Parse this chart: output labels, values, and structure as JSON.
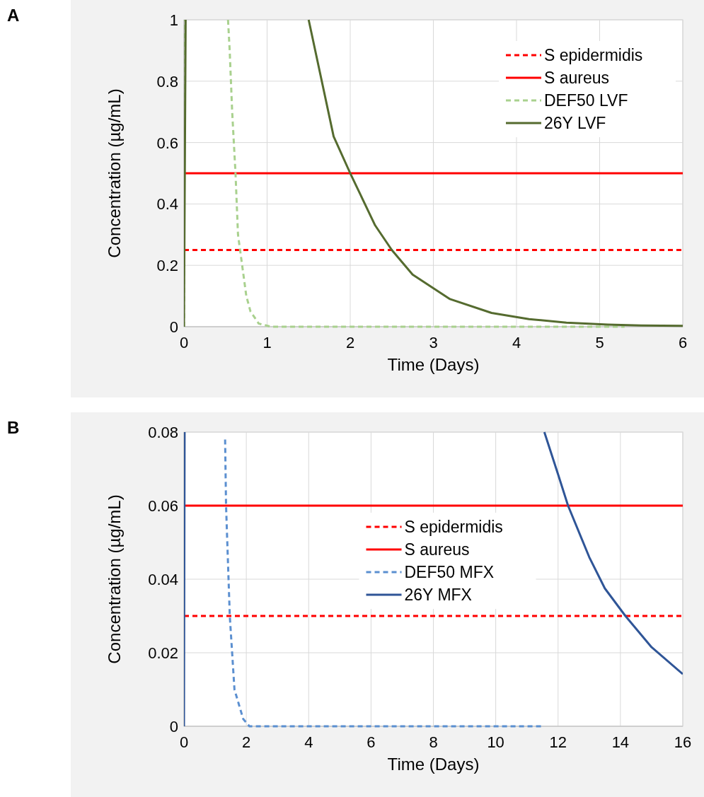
{
  "chart_data": [
    {
      "type": "line",
      "annotations": [
        "A"
      ],
      "xlabel": "Time (Days)",
      "ylabel": "Concentration  (µg/mL)",
      "xlim": [
        0,
        6
      ],
      "xticks": [
        0,
        1,
        2,
        3,
        4,
        5,
        6
      ],
      "ylim": [
        0,
        1
      ],
      "yticks": [
        0,
        0.2,
        0.4,
        0.6,
        0.8,
        1
      ],
      "grid": true,
      "legend": "top right",
      "series": [
        {
          "name": "S epidermidis",
          "color": "#ff0000",
          "line_style": "dashed",
          "x": [
            0,
            6
          ],
          "values": [
            0.25,
            0.25
          ]
        },
        {
          "name": "S aureus",
          "color": "#ff0000",
          "line_style": "solid",
          "x": [
            0,
            6
          ],
          "values": [
            0.5,
            0.5
          ]
        },
        {
          "name": "DEF50 LVF",
          "color": "#a9d18e",
          "line_style": "dashed",
          "x": [
            0,
            0.01,
            0.3,
            0.53,
            0.55,
            0.58,
            0.62,
            0.65,
            0.7,
            0.75,
            0.8,
            0.9,
            1.05,
            5.3
          ],
          "values": [
            0,
            1,
            null,
            1,
            0.9,
            0.7,
            0.5,
            0.3,
            0.2,
            0.1,
            0.05,
            0.01,
            0,
            0
          ]
        },
        {
          "name": "26Y LVF",
          "color": "#556b2f",
          "line_style": "solid",
          "x": [
            0,
            0.02,
            0.8,
            1.5,
            1.8,
            2,
            2.3,
            2.5,
            2.75,
            3.2,
            3.7,
            4.15,
            4.6,
            5.1,
            5.5,
            6
          ],
          "values": [
            0,
            1,
            null,
            1,
            0.62,
            0.5,
            0.33,
            0.25,
            0.17,
            0.09,
            0.045,
            0.025,
            0.013,
            0.007,
            0.004,
            0.003
          ]
        }
      ]
    },
    {
      "type": "line",
      "annotations": [
        "B"
      ],
      "xlabel": "Time (Days)",
      "ylabel": "Concentration  (µg/mL)",
      "xlim": [
        0,
        16
      ],
      "xticks": [
        0,
        2,
        4,
        6,
        8,
        10,
        12,
        14,
        16
      ],
      "ylim": [
        0,
        0.08
      ],
      "yticks": [
        0,
        0.02,
        0.04,
        0.06,
        0.08
      ],
      "grid": true,
      "legend": "center",
      "series": [
        {
          "name": "S epidermidis",
          "color": "#ff0000",
          "line_style": "dashed",
          "x": [
            0,
            16
          ],
          "values": [
            0.03,
            0.03
          ]
        },
        {
          "name": "S aureus",
          "color": "#ff0000",
          "line_style": "solid",
          "x": [
            0,
            16
          ],
          "values": [
            0.06,
            0.06
          ]
        },
        {
          "name": "DEF50 MFX",
          "color": "#5b8fd0",
          "line_style": "dashed",
          "x": [
            1.32,
            1.35,
            1.47,
            1.62,
            1.9,
            2.1,
            11.5
          ],
          "values": [
            0.078,
            0.06,
            0.03,
            0.01,
            0.002,
            0,
            0
          ]
        },
        {
          "name": "26Y MFX",
          "color": "#2f5597",
          "line_style": "solid",
          "x": [
            0,
            0.02,
            5,
            11.56,
            12,
            12.32,
            13,
            13.5,
            14.16,
            15,
            16
          ],
          "values": [
            0,
            0.08,
            null,
            0.08,
            0.0685,
            0.06,
            0.046,
            0.0375,
            0.03,
            0.0215,
            0.0142
          ]
        }
      ]
    }
  ]
}
